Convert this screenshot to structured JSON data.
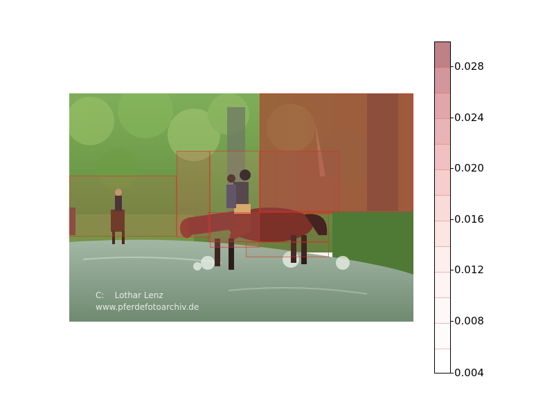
{
  "watermark": {
    "line1": "C:    Lothar Lenz",
    "line2": "www.pferdefotoarchiv.de"
  },
  "colorbar": {
    "ticks": [
      "0.028",
      "0.024",
      "0.020",
      "0.016",
      "0.012",
      "0.008",
      "0.004"
    ],
    "range": [
      0.004,
      0.03
    ]
  },
  "colors": {
    "overlay_high": "#b05a64",
    "overlay_low": "#ffffff",
    "region_border": "#d72d23"
  }
}
